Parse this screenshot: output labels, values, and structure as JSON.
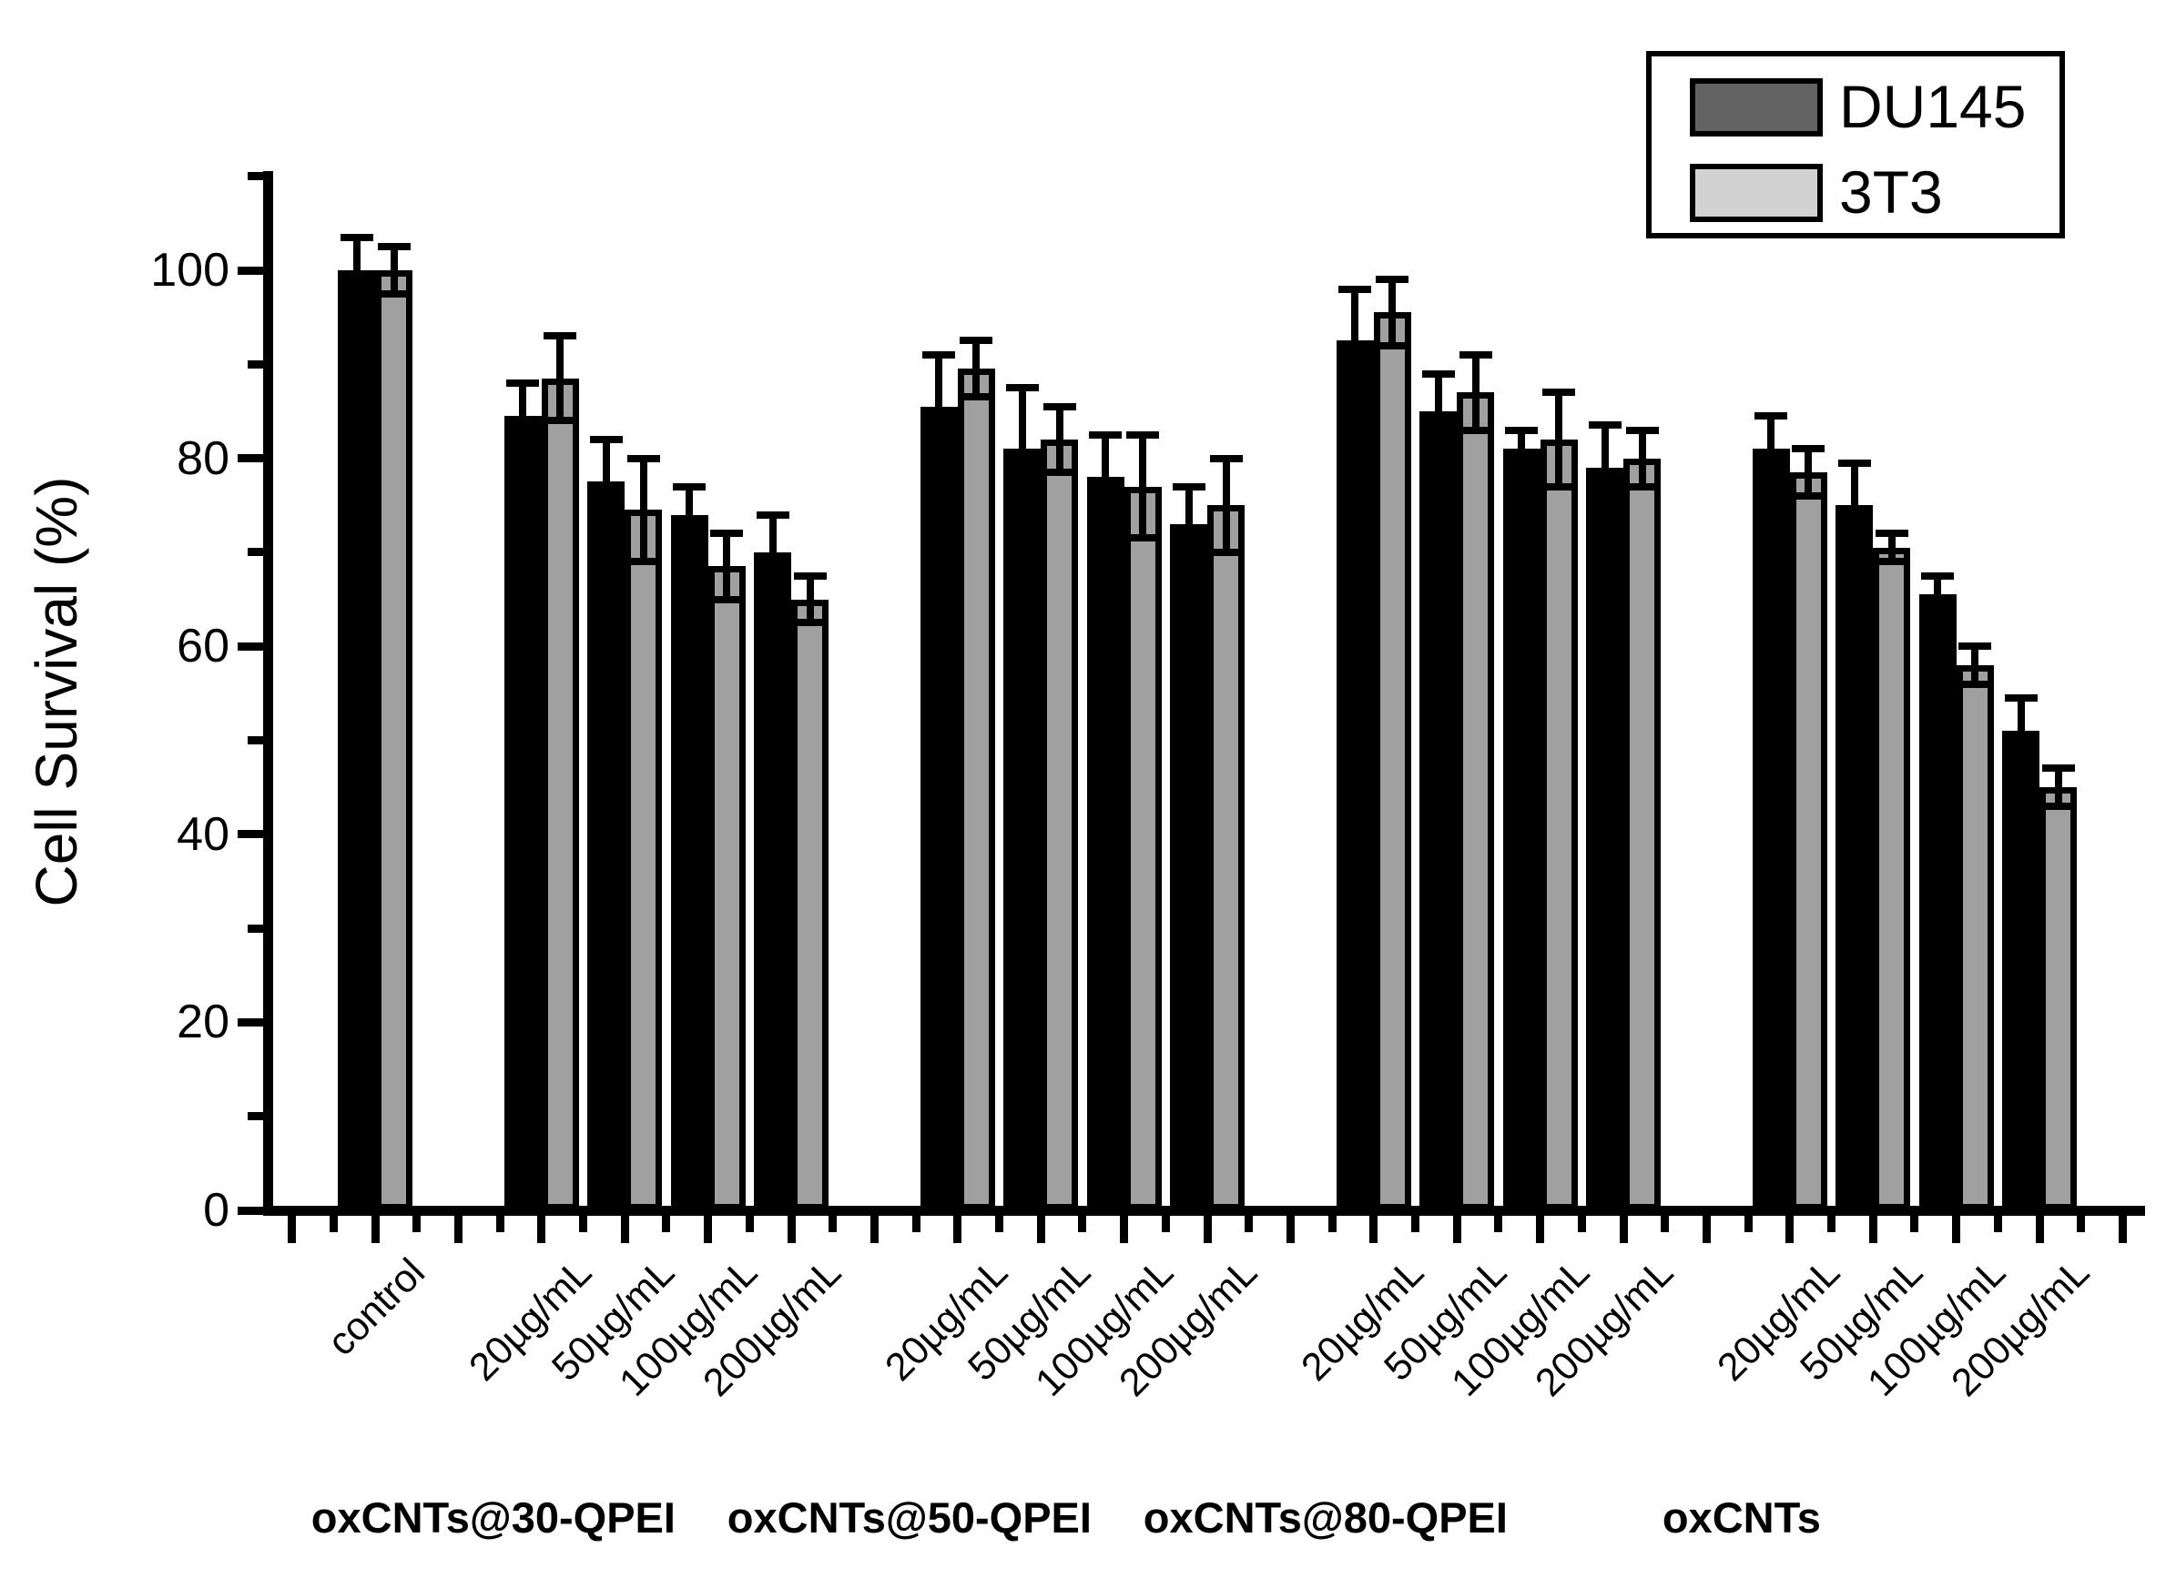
{
  "chart_data": {
    "type": "bar",
    "title": "",
    "ylabel": "Cell Survival (%)",
    "xlabel": "",
    "ylim": [
      0,
      110
    ],
    "yticks_major": [
      0,
      20,
      40,
      60,
      80,
      100
    ],
    "yticks_minor": [
      10,
      30,
      50,
      70,
      90,
      110
    ],
    "grid": false,
    "legend_position": "top-right",
    "legend": [
      {
        "label": "DU145",
        "swatch_color": "#626262",
        "bar_color": "#000000"
      },
      {
        "label": "3T3",
        "swatch_color": "#d2d2d2",
        "bar_color": "#a0a0a0"
      }
    ],
    "groups": [
      {
        "group_label": "",
        "doses": [
          "control"
        ],
        "series": [
          {
            "name": "DU145",
            "values": [
              100
            ],
            "errors": [
              3.5
            ]
          },
          {
            "name": "3T3",
            "values": [
              100
            ],
            "errors": [
              2.5
            ]
          }
        ]
      },
      {
        "group_label": "oxCNTs@30-QPEI",
        "doses": [
          "20µg/mL",
          "50µg/mL",
          "100µg/mL",
          "200µg/mL"
        ],
        "series": [
          {
            "name": "DU145",
            "values": [
              84.5,
              77.5,
              74,
              70
            ],
            "errors": [
              3.5,
              4.5,
              3,
              4
            ]
          },
          {
            "name": "3T3",
            "values": [
              88.5,
              74.5,
              68.5,
              65
            ],
            "errors": [
              4.5,
              5.5,
              3.5,
              2.5
            ]
          }
        ]
      },
      {
        "group_label": "oxCNTs@50-QPEI",
        "doses": [
          "20µg/mL",
          "50µg/mL",
          "100µg/mL",
          "200µg/mL"
        ],
        "series": [
          {
            "name": "DU145",
            "values": [
              85.5,
              81,
              78,
              73
            ],
            "errors": [
              5.5,
              6.5,
              4.5,
              4
            ]
          },
          {
            "name": "3T3",
            "values": [
              89.5,
              82,
              77,
              75
            ],
            "errors": [
              3,
              3.5,
              5.5,
              5
            ]
          }
        ]
      },
      {
        "group_label": "oxCNTs@80-QPEI",
        "doses": [
          "20µg/mL",
          "50µg/mL",
          "100µg/mL",
          "200µg/mL"
        ],
        "series": [
          {
            "name": "DU145",
            "values": [
              92.5,
              85,
              81,
              79
            ],
            "errors": [
              5.5,
              4,
              2,
              4.5
            ]
          },
          {
            "name": "3T3",
            "values": [
              95.5,
              87,
              82,
              80
            ],
            "errors": [
              3.5,
              4,
              5,
              3
            ]
          }
        ]
      },
      {
        "group_label": "oxCNTs",
        "doses": [
          "20µg/mL",
          "50µg/mL",
          "100µg/mL",
          "200µg/mL"
        ],
        "series": [
          {
            "name": "DU145",
            "values": [
              81,
              75,
              65.5,
              51
            ],
            "errors": [
              3.5,
              4.5,
              2,
              3.5
            ]
          },
          {
            "name": "3T3",
            "values": [
              78.5,
              70.5,
              58,
              45
            ],
            "errors": [
              2.5,
              1.5,
              2,
              2
            ]
          }
        ]
      }
    ]
  }
}
